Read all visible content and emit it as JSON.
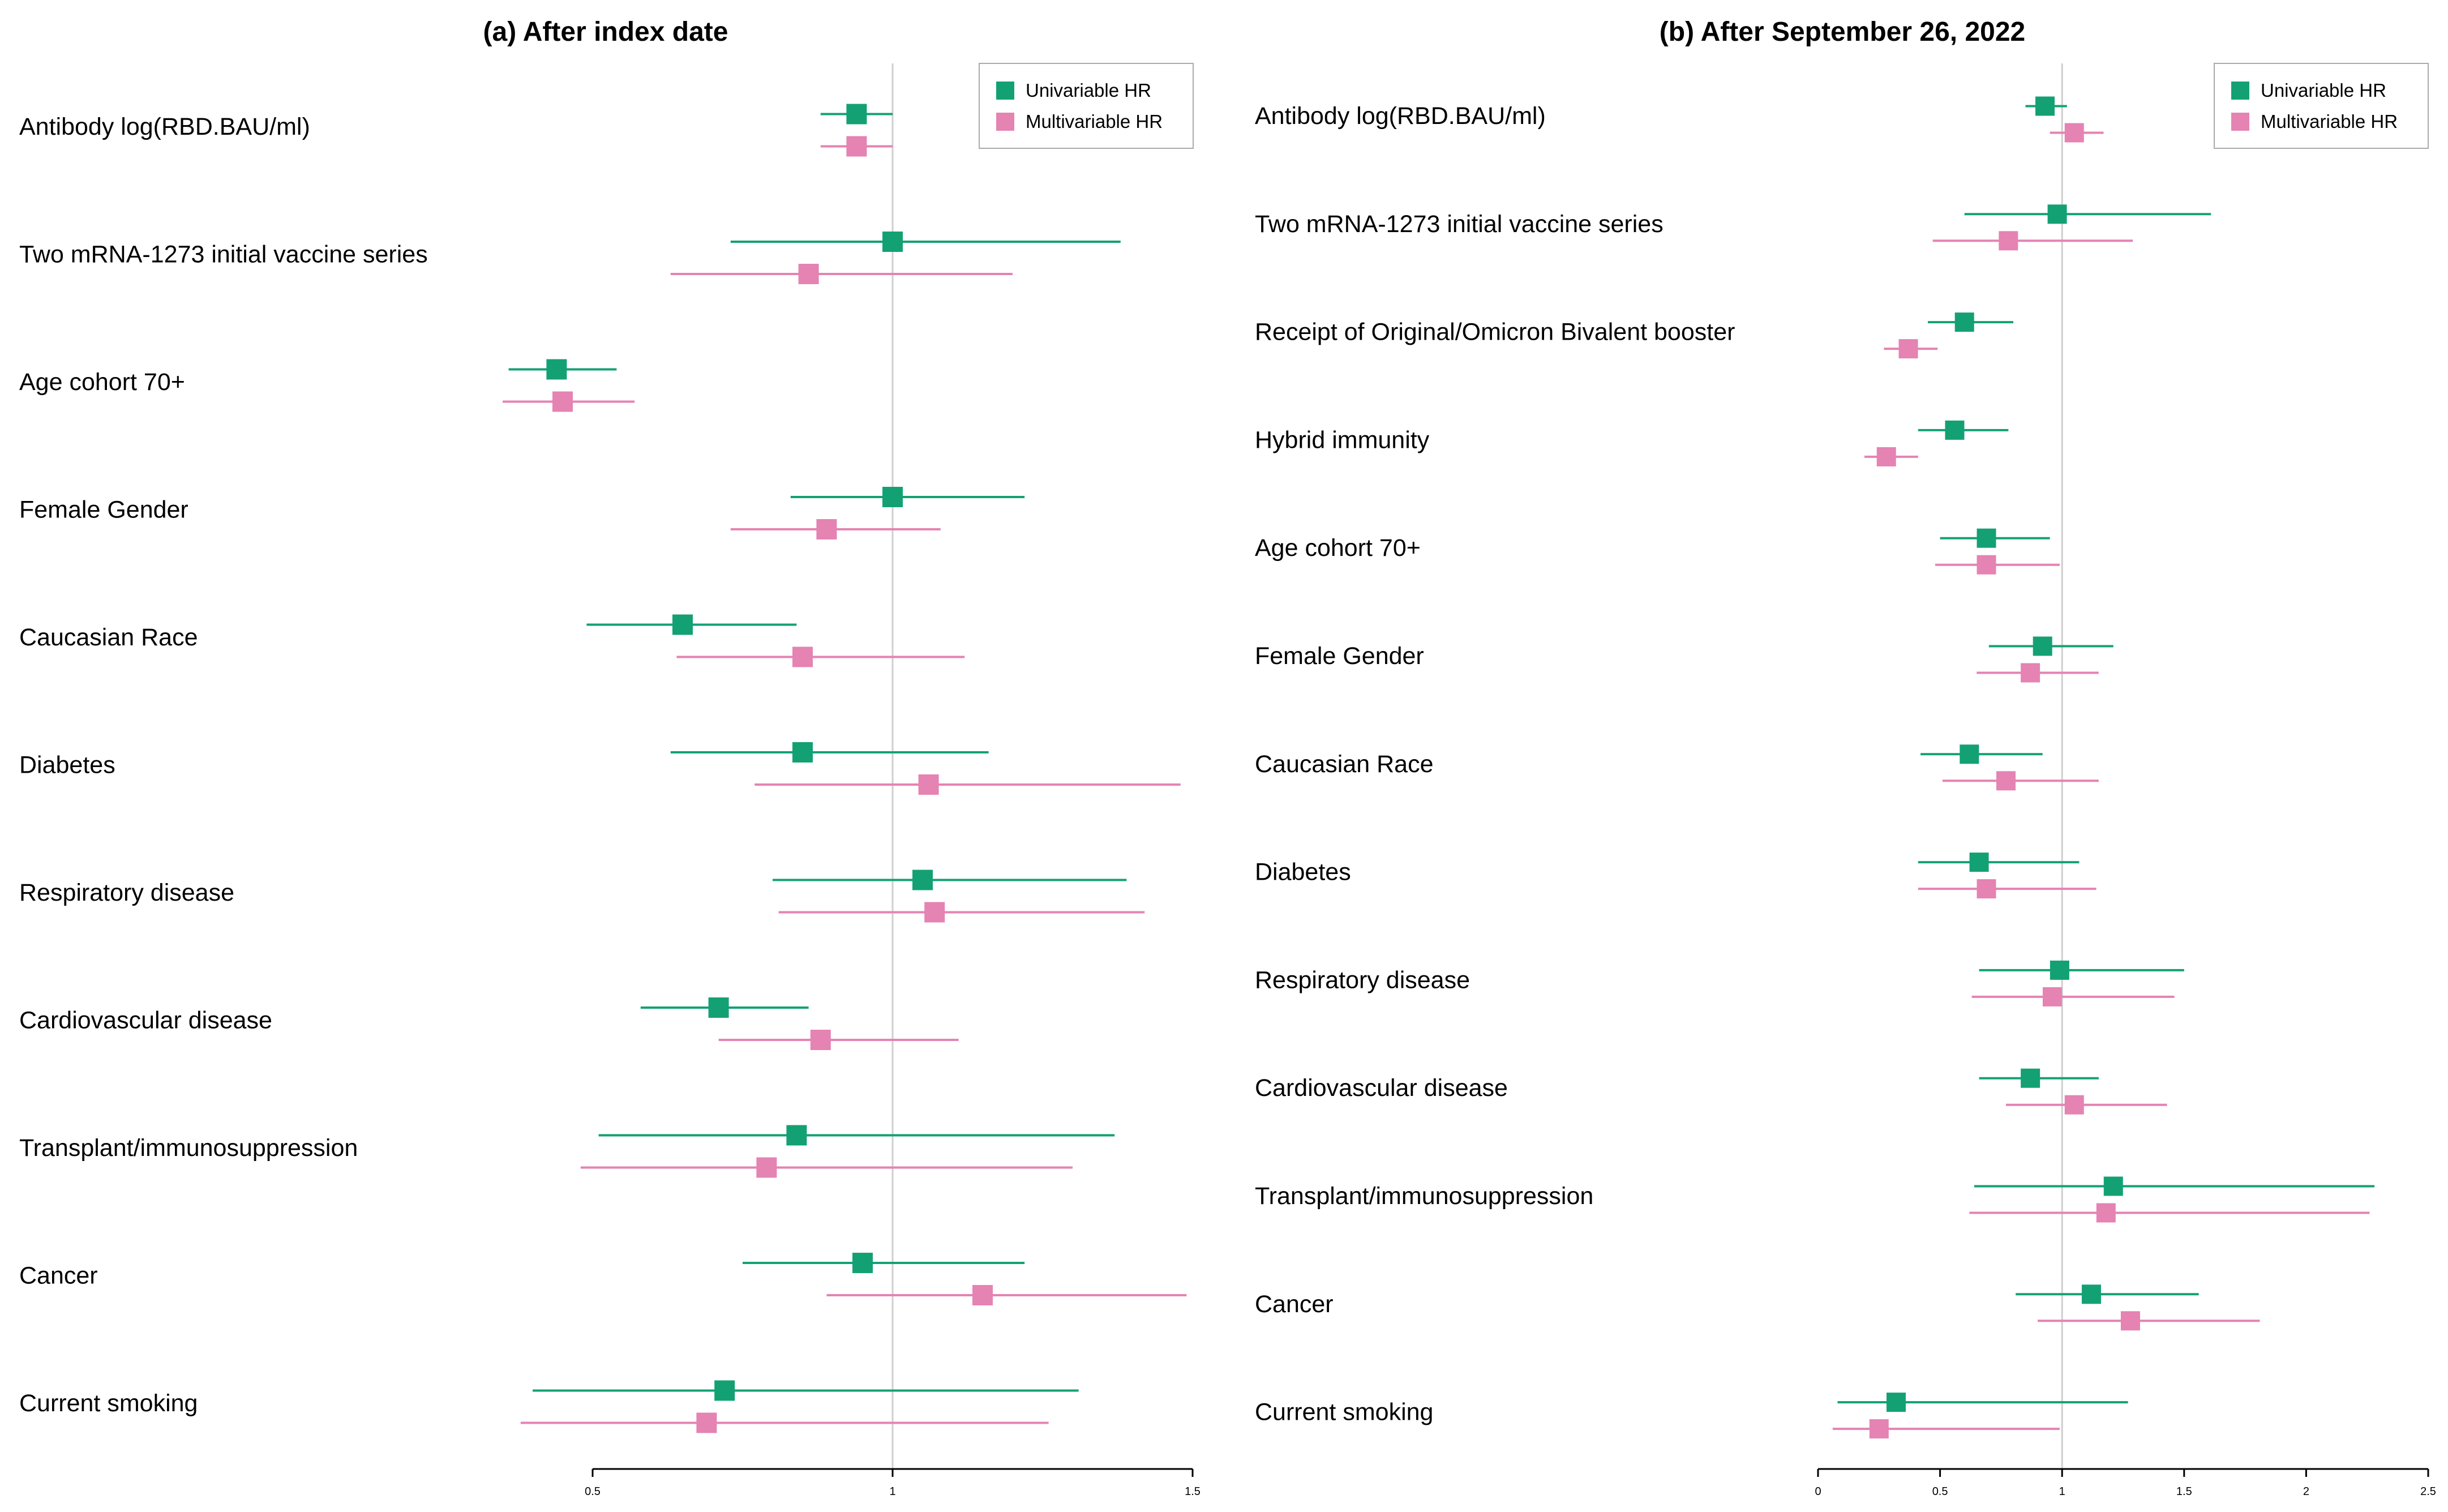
{
  "colors": {
    "univariable": "#13a174",
    "multivariable": "#e583b3",
    "reference": "#cfcfcf",
    "axis": "#000000"
  },
  "chart_data": [
    {
      "type": "forest",
      "title": "(a) After index date",
      "xlim": [
        0.5,
        1.5
      ],
      "xticks": [
        "0.5",
        "1",
        "1.5"
      ],
      "reference_line": 1,
      "legend": {
        "position": "top-right",
        "entries": [
          "Univariable HR",
          "Multivariable HR"
        ]
      },
      "rows": [
        {
          "label": "Antibody log(RBD.BAU/ml)",
          "univariable": {
            "hr": 0.94,
            "lo": 0.88,
            "hi": 1.0
          },
          "multivariable": {
            "hr": 0.94,
            "lo": 0.88,
            "hi": 1.0
          }
        },
        {
          "label": "Two mRNA-1273 initial vaccine series",
          "univariable": {
            "hr": 1.0,
            "lo": 0.73,
            "hi": 1.38
          },
          "multivariable": {
            "hr": 0.86,
            "lo": 0.63,
            "hi": 1.2
          }
        },
        {
          "label": "Age cohort 70+",
          "univariable": {
            "hr": 0.44,
            "lo": 0.36,
            "hi": 0.54
          },
          "multivariable": {
            "hr": 0.45,
            "lo": 0.35,
            "hi": 0.57
          }
        },
        {
          "label": "Female Gender",
          "univariable": {
            "hr": 1.0,
            "lo": 0.83,
            "hi": 1.22
          },
          "multivariable": {
            "hr": 0.89,
            "lo": 0.73,
            "hi": 1.08
          }
        },
        {
          "label": "Caucasian Race",
          "univariable": {
            "hr": 0.65,
            "lo": 0.49,
            "hi": 0.84
          },
          "multivariable": {
            "hr": 0.85,
            "lo": 0.64,
            "hi": 1.12
          }
        },
        {
          "label": "Diabetes",
          "univariable": {
            "hr": 0.85,
            "lo": 0.63,
            "hi": 1.16
          },
          "multivariable": {
            "hr": 1.06,
            "lo": 0.77,
            "hi": 1.48
          }
        },
        {
          "label": "Respiratory disease",
          "univariable": {
            "hr": 1.05,
            "lo": 0.8,
            "hi": 1.39
          },
          "multivariable": {
            "hr": 1.07,
            "lo": 0.81,
            "hi": 1.42
          }
        },
        {
          "label": "Cardiovascular disease",
          "univariable": {
            "hr": 0.71,
            "lo": 0.58,
            "hi": 0.86
          },
          "multivariable": {
            "hr": 0.88,
            "lo": 0.71,
            "hi": 1.11
          }
        },
        {
          "label": "Transplant/immunosuppression",
          "univariable": {
            "hr": 0.84,
            "lo": 0.51,
            "hi": 1.37
          },
          "multivariable": {
            "hr": 0.79,
            "lo": 0.48,
            "hi": 1.3
          }
        },
        {
          "label": "Cancer",
          "univariable": {
            "hr": 0.95,
            "lo": 0.75,
            "hi": 1.22
          },
          "multivariable": {
            "hr": 1.15,
            "lo": 0.89,
            "hi": 1.49
          }
        },
        {
          "label": "Current smoking",
          "univariable": {
            "hr": 0.72,
            "lo": 0.4,
            "hi": 1.31
          },
          "multivariable": {
            "hr": 0.69,
            "lo": 0.38,
            "hi": 1.26
          }
        }
      ]
    },
    {
      "type": "forest",
      "title": "(b) After September 26, 2022",
      "xlim": [
        0,
        2.5
      ],
      "xticks": [
        "0",
        "0.5",
        "1",
        "1.5",
        "2",
        "2.5"
      ],
      "reference_line": 1,
      "legend": {
        "position": "top-right",
        "entries": [
          "Univariable HR",
          "Multivariable HR"
        ]
      },
      "rows": [
        {
          "label": "Antibody log(RBD.BAU/ml)",
          "univariable": {
            "hr": 0.93,
            "lo": 0.85,
            "hi": 1.02
          },
          "multivariable": {
            "hr": 1.05,
            "lo": 0.95,
            "hi": 1.17
          }
        },
        {
          "label": "Two mRNA-1273 initial vaccine series",
          "univariable": {
            "hr": 0.98,
            "lo": 0.6,
            "hi": 1.61
          },
          "multivariable": {
            "hr": 0.78,
            "lo": 0.47,
            "hi": 1.29
          }
        },
        {
          "label": "Receipt of Original/Omicron Bivalent booster",
          "univariable": {
            "hr": 0.6,
            "lo": 0.45,
            "hi": 0.8
          },
          "multivariable": {
            "hr": 0.37,
            "lo": 0.27,
            "hi": 0.49
          }
        },
        {
          "label": "Hybrid immunity",
          "univariable": {
            "hr": 0.56,
            "lo": 0.41,
            "hi": 0.78
          },
          "multivariable": {
            "hr": 0.28,
            "lo": 0.19,
            "hi": 0.41
          }
        },
        {
          "label": "Age cohort 70+",
          "univariable": {
            "hr": 0.69,
            "lo": 0.5,
            "hi": 0.95
          },
          "multivariable": {
            "hr": 0.69,
            "lo": 0.48,
            "hi": 0.99
          }
        },
        {
          "label": "Female Gender",
          "univariable": {
            "hr": 0.92,
            "lo": 0.7,
            "hi": 1.21
          },
          "multivariable": {
            "hr": 0.87,
            "lo": 0.65,
            "hi": 1.15
          }
        },
        {
          "label": "Caucasian Race",
          "univariable": {
            "hr": 0.62,
            "lo": 0.42,
            "hi": 0.92
          },
          "multivariable": {
            "hr": 0.77,
            "lo": 0.51,
            "hi": 1.15
          }
        },
        {
          "label": "Diabetes",
          "univariable": {
            "hr": 0.66,
            "lo": 0.41,
            "hi": 1.07
          },
          "multivariable": {
            "hr": 0.69,
            "lo": 0.41,
            "hi": 1.14
          }
        },
        {
          "label": "Respiratory disease",
          "univariable": {
            "hr": 0.99,
            "lo": 0.66,
            "hi": 1.5
          },
          "multivariable": {
            "hr": 0.96,
            "lo": 0.63,
            "hi": 1.46
          }
        },
        {
          "label": "Cardiovascular disease",
          "univariable": {
            "hr": 0.87,
            "lo": 0.66,
            "hi": 1.15
          },
          "multivariable": {
            "hr": 1.05,
            "lo": 0.77,
            "hi": 1.43
          }
        },
        {
          "label": "Transplant/immunosuppression",
          "univariable": {
            "hr": 1.21,
            "lo": 0.64,
            "hi": 2.28
          },
          "multivariable": {
            "hr": 1.18,
            "lo": 0.62,
            "hi": 2.26
          }
        },
        {
          "label": "Cancer",
          "univariable": {
            "hr": 1.12,
            "lo": 0.81,
            "hi": 1.56
          },
          "multivariable": {
            "hr": 1.28,
            "lo": 0.9,
            "hi": 1.81
          }
        },
        {
          "label": "Current smoking",
          "univariable": {
            "hr": 0.32,
            "lo": 0.08,
            "hi": 1.27
          },
          "multivariable": {
            "hr": 0.25,
            "lo": 0.06,
            "hi": 0.99
          }
        }
      ]
    }
  ]
}
